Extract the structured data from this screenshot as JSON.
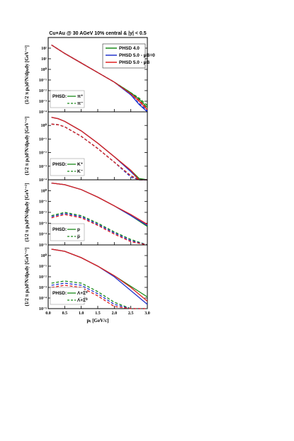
{
  "colors": {
    "phsd40": "#1a8a1a",
    "phsd50_muB0": "#2233cc",
    "phsd50_muBne0": "#e02020"
  },
  "header": "Cu+Au @ 30 AGeV 10% central & |y| < 0.5",
  "legend": [
    "PHSD 4.0",
    "PHSD 5.0 - μB=0",
    "PHSD 5.0 - μB"
  ],
  "xlabel": "pₜ [GeV/c]",
  "ylabel": "(1/2 π pₜ)d²N/dpₜdy [GeV⁻²]",
  "xticks": [
    "0.0",
    "0.5",
    "1.0",
    "1.5",
    "2.0",
    "2.5",
    "3.0"
  ],
  "chart_data": [
    {
      "type": "line",
      "panel": 1,
      "xlim": [
        0,
        3
      ],
      "ylim_log10": [
        -4,
        3
      ],
      "yticks": [
        "10²",
        "10¹",
        "10⁰",
        "10⁻¹",
        "10⁻²",
        "10⁻³",
        "10⁻⁴"
      ],
      "phsd_label": "PHSD:",
      "species": [
        "π⁺",
        "π⁻"
      ],
      "x": [
        0.1,
        0.5,
        1.0,
        1.5,
        2.0,
        2.5,
        2.75,
        3.0
      ],
      "series": [
        {
          "name": "PHSD 4.0",
          "charge": "+",
          "log10y": [
            2.3,
            1.5,
            0.6,
            -0.3,
            -1.2,
            -2.2,
            -2.8,
            -3.6
          ]
        },
        {
          "name": "PHSD 5.0 - μB=0",
          "charge": "+",
          "log10y": [
            2.3,
            1.5,
            0.6,
            -0.3,
            -1.2,
            -2.4,
            -3.3,
            -4.0
          ]
        },
        {
          "name": "PHSD 5.0 - μB",
          "charge": "+",
          "log10y": [
            2.3,
            1.5,
            0.6,
            -0.3,
            -1.2,
            -2.3,
            -3.0,
            -3.8
          ]
        },
        {
          "name": "PHSD 4.0",
          "charge": "-",
          "log10y": [
            2.3,
            1.5,
            0.6,
            -0.3,
            -1.2,
            -2.2,
            -2.7,
            -3.4
          ]
        },
        {
          "name": "PHSD 5.0 - μB=0",
          "charge": "-",
          "log10y": [
            2.3,
            1.5,
            0.6,
            -0.3,
            -1.2,
            -2.4,
            -3.2,
            -3.9
          ]
        },
        {
          "name": "PHSD 5.0 - μB",
          "charge": "-",
          "log10y": [
            2.3,
            1.5,
            0.6,
            -0.3,
            -1.2,
            -2.3,
            -2.9,
            -3.7
          ]
        }
      ]
    },
    {
      "type": "line",
      "panel": 2,
      "xlim": [
        0,
        3
      ],
      "ylim_log10": [
        -4,
        1
      ],
      "yticks": [
        "10⁰",
        "10⁻¹",
        "10⁻²",
        "10⁻³",
        "10⁻⁴"
      ],
      "phsd_label": "PHSD:",
      "species": [
        "K⁺",
        "K⁻"
      ],
      "x": [
        0.1,
        0.3,
        0.5,
        1.0,
        1.5,
        2.0,
        2.5,
        2.75,
        3.0
      ],
      "series": [
        {
          "name": "PHSD 4.0",
          "charge": "+",
          "log10y": [
            0.6,
            0.5,
            0.3,
            -0.4,
            -1.3,
            -2.3,
            -3.3,
            -3.9,
            -4.3
          ]
        },
        {
          "name": "PHSD 5.0 - μB=0",
          "charge": "+",
          "log10y": [
            0.6,
            0.5,
            0.3,
            -0.4,
            -1.3,
            -2.3,
            -3.4,
            -4.1,
            -4.5
          ]
        },
        {
          "name": "PHSD 5.0 - μB",
          "charge": "+",
          "log10y": [
            0.6,
            0.5,
            0.3,
            -0.4,
            -1.3,
            -2.3,
            -3.3,
            -4.0,
            -4.4
          ]
        },
        {
          "name": "PHSD 4.0",
          "charge": "-",
          "log10y": [
            0.1,
            0.05,
            -0.1,
            -0.8,
            -1.7,
            -2.7,
            -3.7,
            -4.3,
            -4.6
          ]
        },
        {
          "name": "PHSD 5.0 - μB=0",
          "charge": "-",
          "log10y": [
            0.1,
            0.05,
            -0.1,
            -0.8,
            -1.7,
            -2.7,
            -3.8,
            -4.4,
            -4.7
          ]
        },
        {
          "name": "PHSD 5.0 - μB",
          "charge": "-",
          "log10y": [
            0.1,
            0.05,
            -0.1,
            -0.8,
            -1.7,
            -2.7,
            -3.7,
            -4.3,
            -4.6
          ]
        }
      ]
    },
    {
      "type": "line",
      "panel": 3,
      "xlim": [
        0,
        3
      ],
      "ylim_log10": [
        -5,
        1
      ],
      "yticks": [
        "10⁰",
        "10⁻¹",
        "10⁻²",
        "10⁻³",
        "10⁻⁴",
        "10⁻⁵"
      ],
      "phsd_label": "PHSD:",
      "species": [
        "p",
        "p̅"
      ],
      "x": [
        0.1,
        0.5,
        1.0,
        1.5,
        2.0,
        2.5,
        3.0
      ],
      "series": [
        {
          "name": "PHSD 4.0",
          "charge": "+",
          "log10y": [
            0.7,
            0.55,
            0.1,
            -0.6,
            -1.4,
            -2.3,
            -3.3
          ]
        },
        {
          "name": "PHSD 5.0 - μB=0",
          "charge": "+",
          "log10y": [
            0.7,
            0.55,
            0.1,
            -0.6,
            -1.4,
            -2.3,
            -3.2
          ]
        },
        {
          "name": "PHSD 5.0 - μB",
          "charge": "+",
          "log10y": [
            0.7,
            0.55,
            0.1,
            -0.6,
            -1.4,
            -2.2,
            -3.1
          ]
        },
        {
          "name": "PHSD 4.0",
          "charge": "-",
          "log10y": [
            -2.3,
            -2.0,
            -2.3,
            -3.0,
            -3.8,
            -4.5,
            -5.0
          ]
        },
        {
          "name": "PHSD 5.0 - μB=0",
          "charge": "-",
          "log10y": [
            -2.4,
            -2.1,
            -2.4,
            -3.1,
            -3.9,
            -4.6,
            -5.1
          ]
        },
        {
          "name": "PHSD 5.0 - μB",
          "charge": "-",
          "log10y": [
            -2.5,
            -2.2,
            -2.5,
            -3.2,
            -4.0,
            -4.7,
            -5.2
          ]
        }
      ]
    },
    {
      "type": "line",
      "panel": 4,
      "xlim": [
        0,
        3
      ],
      "ylim_log10": [
        -5,
        1
      ],
      "yticks": [
        "10⁰",
        "10⁻¹",
        "10⁻²",
        "10⁻³",
        "10⁻⁴",
        "10⁻⁵"
      ],
      "phsd_label": "PHSD:",
      "species": [
        "Λ+Σ⁰",
        "Λ̅+Σ̅⁰"
      ],
      "x": [
        0.1,
        0.5,
        1.0,
        1.5,
        2.0,
        2.5,
        3.0
      ],
      "series": [
        {
          "name": "PHSD 4.0",
          "charge": "+",
          "log10y": [
            0.6,
            0.4,
            -0.2,
            -1.0,
            -1.9,
            -2.9,
            -3.9
          ]
        },
        {
          "name": "PHSD 5.0 - μB=0",
          "charge": "+",
          "log10y": [
            0.6,
            0.4,
            -0.2,
            -1.0,
            -2.0,
            -3.3,
            -4.6
          ]
        },
        {
          "name": "PHSD 5.0 - μB",
          "charge": "+",
          "log10y": [
            0.6,
            0.4,
            -0.2,
            -1.0,
            -1.9,
            -3.0,
            -4.3
          ]
        },
        {
          "name": "PHSD 4.0",
          "charge": "-",
          "log10y": [
            -2.6,
            -2.4,
            -2.6,
            -3.4,
            -4.4,
            -5.2,
            -5.8
          ]
        },
        {
          "name": "PHSD 5.0 - μB=0",
          "charge": "-",
          "log10y": [
            -2.8,
            -2.6,
            -2.8,
            -3.6,
            -4.6,
            -5.4,
            -6.0
          ]
        },
        {
          "name": "PHSD 5.0 - μB",
          "charge": "-",
          "log10y": [
            -3.0,
            -2.8,
            -3.0,
            -3.8,
            -4.8,
            -5.6,
            -6.2
          ]
        }
      ]
    }
  ]
}
